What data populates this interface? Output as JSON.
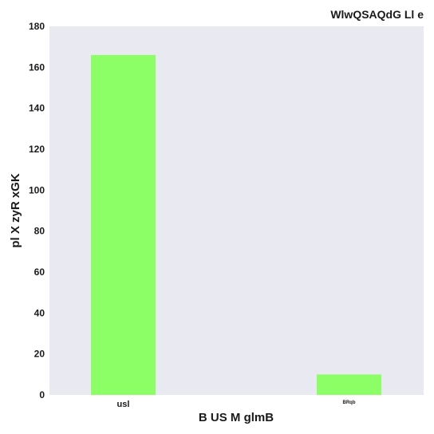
{
  "chart_data": {
    "type": "bar",
    "title": "WlwQSAQdG Ll e",
    "xlabel": "B US M glmB",
    "ylabel": "pl X zyR xGK",
    "categories": [
      "usl",
      "BRqb"
    ],
    "values": [
      166,
      10
    ],
    "ylim": [
      0,
      180
    ],
    "yticks": [
      0,
      20,
      40,
      60,
      80,
      100,
      120,
      140,
      160,
      180
    ],
    "grid": false,
    "legend": "none",
    "colors": {
      "bar": "#8cff66",
      "plot_background": "#e9e9f2",
      "text": "#1a1a1a"
    }
  }
}
